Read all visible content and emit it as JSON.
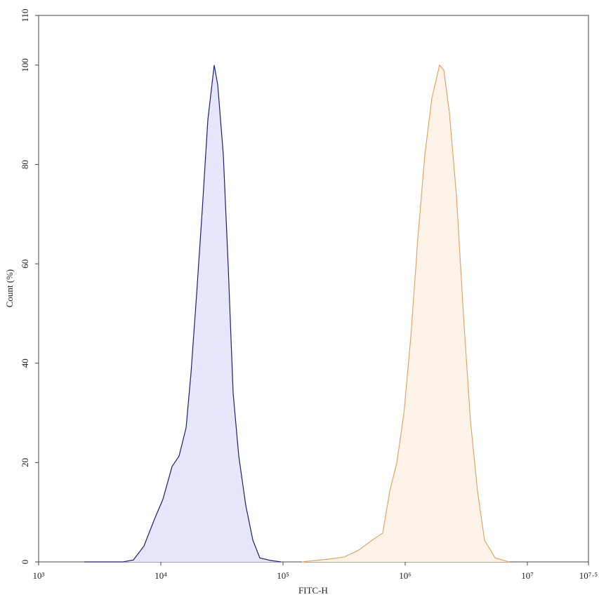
{
  "chart_data": {
    "type": "area",
    "xlabel": "FITC-H",
    "ylabel": "Count (%)",
    "xscale": "log",
    "xlim": [
      1000,
      31622777
    ],
    "xticks": [
      {
        "value": 1000,
        "label": "10³"
      },
      {
        "value": 10000,
        "label": "10⁴"
      },
      {
        "value": 100000,
        "label": "10⁵"
      },
      {
        "value": 1000000,
        "label": "10⁶"
      },
      {
        "value": 10000000,
        "label": "10⁷"
      },
      {
        "value": 31622777,
        "label": "10⁷·⁵"
      }
    ],
    "ylim": [
      0,
      110
    ],
    "yticks": [
      0,
      20,
      40,
      60,
      80,
      100,
      110
    ],
    "series": [
      {
        "color": "#1b1f78",
        "fill": "#e6e7fb",
        "x": [
          2366,
          4898,
          5970,
          7280,
          8870,
          10400,
          12360,
          14100,
          16100,
          17660,
          19630,
          21830,
          24270,
          27350,
          29240,
          32470,
          35620,
          39080,
          43450,
          49570,
          56620,
          64600,
          78800,
          96200
        ],
        "values": [
          0,
          0,
          0.4,
          3.2,
          8.6,
          12.6,
          19.2,
          21.3,
          27,
          38,
          53.8,
          70.8,
          89,
          100,
          96,
          82,
          59.5,
          34,
          21.3,
          11.4,
          4.4,
          0.8,
          0.3,
          0
        ]
      },
      {
        "color": "#e2a664",
        "fill": "#fdf3e8",
        "x": [
          142900,
          242700,
          316000,
          412000,
          537000,
          655000,
          748000,
          853000,
          975000,
          1112000,
          1269000,
          1449000,
          1652000,
          1912000,
          2070000,
          2300000,
          2630000,
          3000000,
          3422000,
          3906000,
          4459000,
          5445000,
          7097000
        ],
        "values": [
          0,
          0.6,
          1.0,
          2.3,
          4.4,
          5.8,
          14.3,
          19.9,
          29.8,
          45.3,
          65.1,
          82,
          93.3,
          100,
          99,
          90.5,
          73.6,
          49.6,
          28.4,
          14.3,
          4.4,
          0.8,
          0
        ]
      }
    ]
  }
}
